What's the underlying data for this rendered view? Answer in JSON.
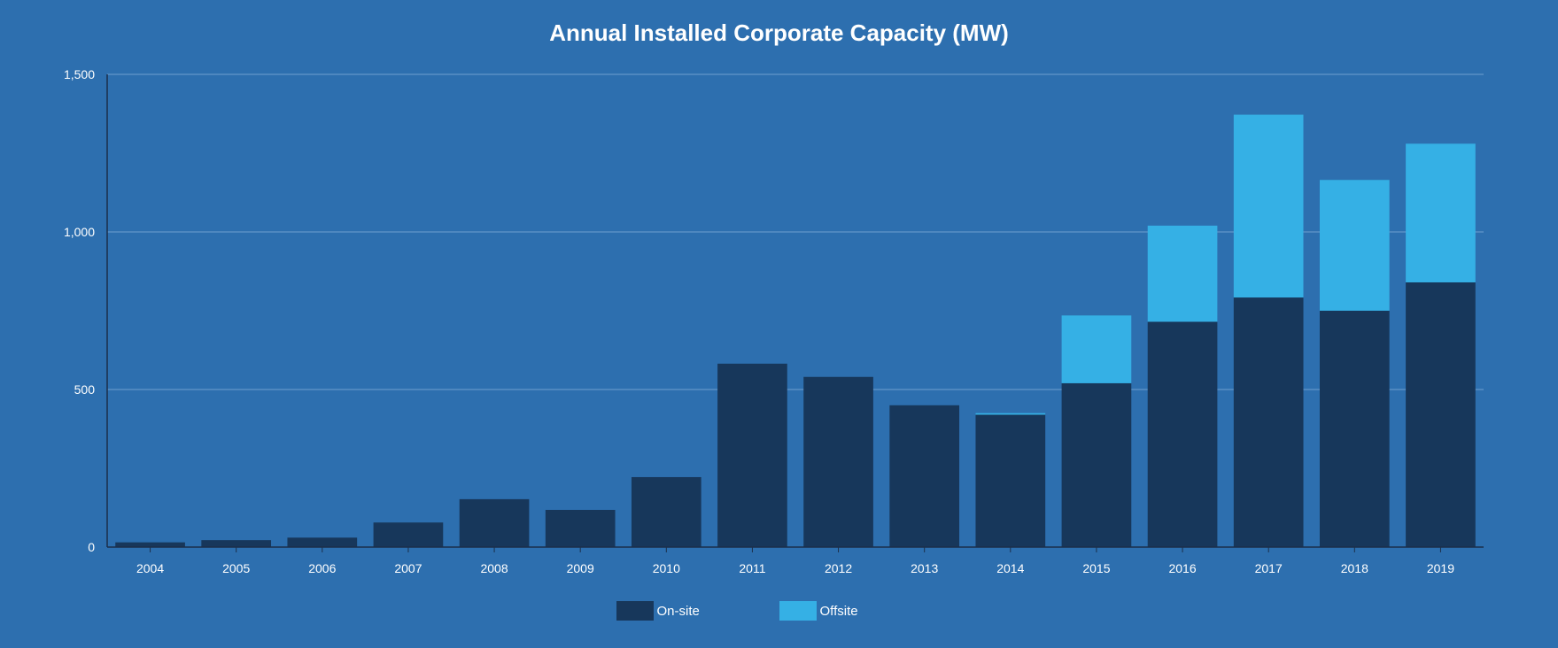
{
  "colors": {
    "background": "#2d6faf",
    "onsite": "#17375b",
    "offsite": "#35b0e5",
    "gridline": "#6f9fcf",
    "axis": "#1b2f4a",
    "text": "#ffffff"
  },
  "chart_data": {
    "type": "bar",
    "stacked": true,
    "title": "Annual Installed Corporate Capacity (MW)",
    "xlabel": "",
    "ylabel": "",
    "categories": [
      "2004",
      "2005",
      "2006",
      "2007",
      "2008",
      "2009",
      "2010",
      "2011",
      "2012",
      "2013",
      "2014",
      "2015",
      "2016",
      "2017",
      "2018",
      "2019"
    ],
    "series": [
      {
        "name": "On-site",
        "color": "#17375b",
        "values": [
          15,
          22,
          30,
          78,
          152,
          118,
          222,
          582,
          540,
          450,
          420,
          520,
          715,
          792,
          750,
          840
        ]
      },
      {
        "name": "Offsite",
        "color": "#35b0e5",
        "values": [
          0,
          0,
          0,
          0,
          0,
          0,
          0,
          0,
          0,
          0,
          5,
          215,
          305,
          580,
          415,
          440
        ]
      }
    ],
    "ylim": [
      0,
      1500
    ],
    "yticks": [
      0,
      500,
      1000,
      1500
    ],
    "ytick_labels": [
      "0",
      "500",
      "1,000",
      "1,500"
    ],
    "grid": true,
    "legend_position": "bottom-center"
  }
}
